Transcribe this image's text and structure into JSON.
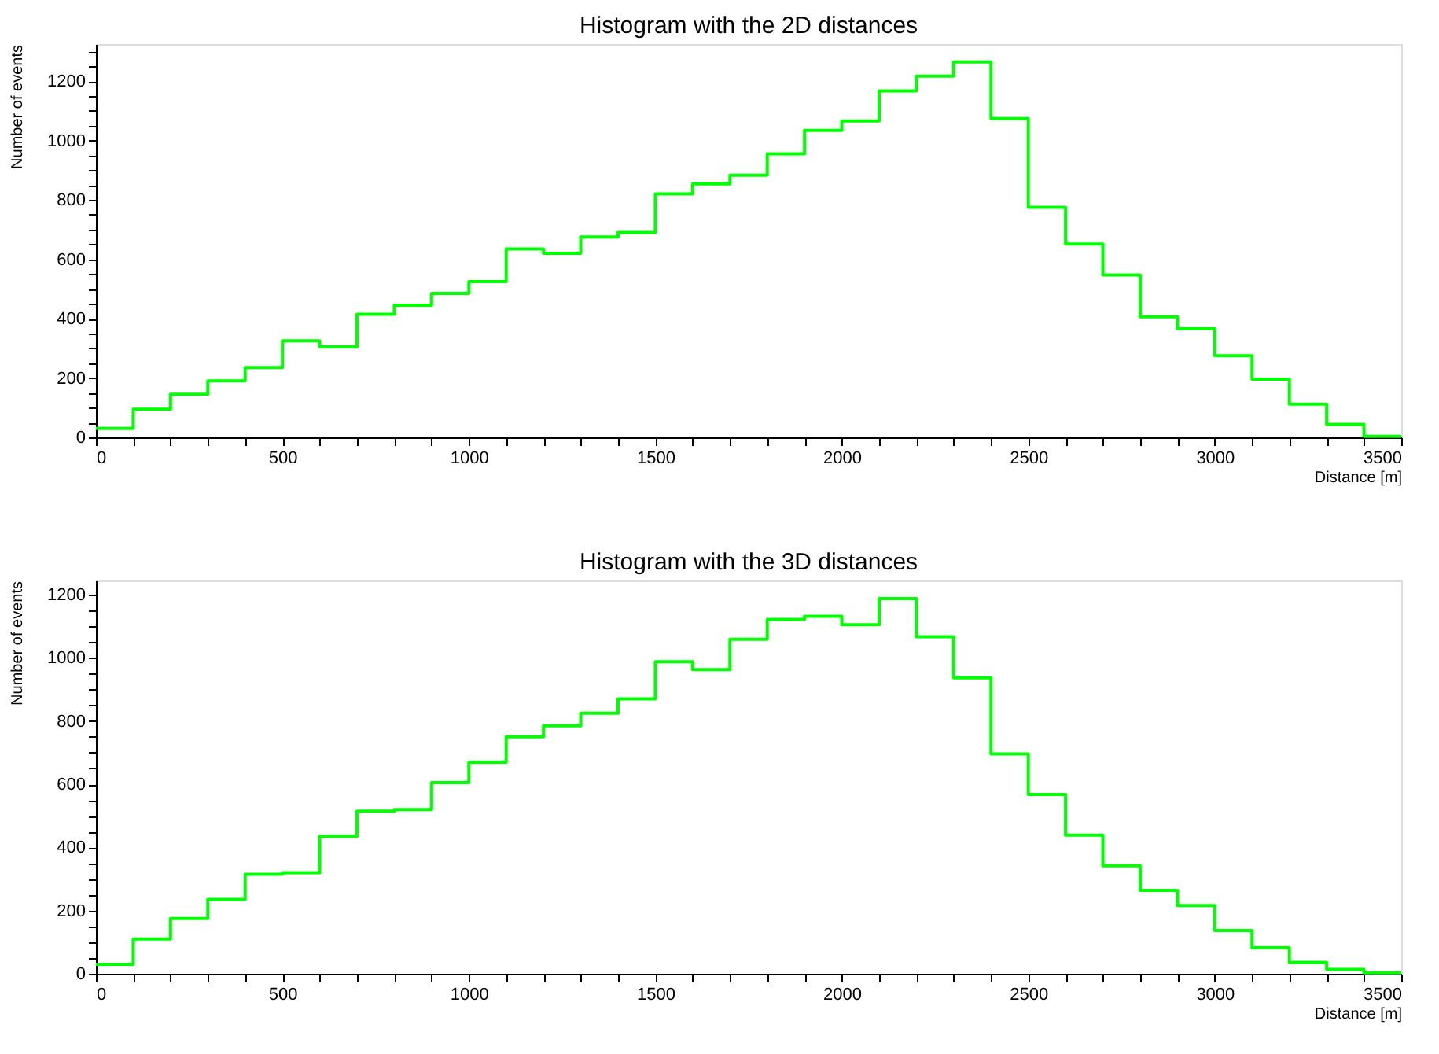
{
  "chart_data": [
    {
      "type": "histogram",
      "title": "Histogram with the 2D distances",
      "xlabel": "Distance [m]",
      "ylabel": "Number of events",
      "color": "#00ff00",
      "bins": [
        0,
        100,
        200,
        300,
        400,
        500,
        600,
        700,
        800,
        900,
        1000,
        1100,
        1200,
        1300,
        1400,
        1500,
        1600,
        1700,
        1800,
        1900,
        2000,
        2100,
        2200,
        2300,
        2400,
        2500,
        2600,
        2700,
        2800,
        2900,
        3000,
        3100,
        3200,
        3300,
        3400,
        3500
      ],
      "values": [
        30,
        95,
        145,
        190,
        235,
        325,
        305,
        415,
        445,
        485,
        525,
        635,
        620,
        675,
        690,
        820,
        854,
        883,
        955,
        1034,
        1066,
        1167,
        1217,
        1265,
        1074,
        775,
        651,
        547,
        406,
        366,
        275,
        196,
        112,
        44,
        3
      ],
      "xlim": [
        0,
        3500
      ],
      "ylim": [
        0,
        1325
      ],
      "xticks": [
        0,
        {
          "value": 100,
          "label": null
        },
        {
          "value": 200,
          "label": null
        },
        {
          "value": 300,
          "label": null
        },
        {
          "value": 400,
          "label": null
        },
        500,
        {
          "value": 600,
          "label": null
        },
        {
          "value": 700,
          "label": null
        },
        {
          "value": 800,
          "label": null
        },
        {
          "value": 900,
          "label": null
        },
        1000,
        {
          "value": 1100,
          "label": null
        },
        {
          "value": 1200,
          "label": null
        },
        {
          "value": 1300,
          "label": null
        },
        {
          "value": 1400,
          "label": null
        },
        1500,
        {
          "value": 1600,
          "label": null
        },
        {
          "value": 1700,
          "label": null
        },
        {
          "value": 1800,
          "label": null
        },
        {
          "value": 1900,
          "label": null
        },
        2000,
        {
          "value": 2100,
          "label": null
        },
        {
          "value": 2200,
          "label": null
        },
        {
          "value": 2300,
          "label": null
        },
        {
          "value": 2400,
          "label": null
        },
        2500,
        {
          "value": 2600,
          "label": null
        },
        {
          "value": 2700,
          "label": null
        },
        {
          "value": 2800,
          "label": null
        },
        {
          "value": 2900,
          "label": null
        },
        3000,
        {
          "value": 3100,
          "label": null
        },
        {
          "value": 3200,
          "label": null
        },
        {
          "value": 3300,
          "label": null
        },
        {
          "value": 3400,
          "label": null
        },
        3500
      ],
      "yticks": [
        0,
        {
          "value": 50,
          "label": null
        },
        {
          "value": 100,
          "label": null
        },
        {
          "value": 150,
          "label": null
        },
        200,
        {
          "value": 250,
          "label": null
        },
        {
          "value": 300,
          "label": null
        },
        {
          "value": 350,
          "label": null
        },
        400,
        {
          "value": 450,
          "label": null
        },
        {
          "value": 500,
          "label": null
        },
        {
          "value": 550,
          "label": null
        },
        600,
        {
          "value": 650,
          "label": null
        },
        {
          "value": 700,
          "label": null
        },
        {
          "value": 750,
          "label": null
        },
        800,
        {
          "value": 850,
          "label": null
        },
        {
          "value": 900,
          "label": null
        },
        {
          "value": 950,
          "label": null
        },
        1000,
        {
          "value": 1050,
          "label": null
        },
        {
          "value": 1100,
          "label": null
        },
        {
          "value": 1150,
          "label": null
        },
        1200,
        {
          "value": 1250,
          "label": null
        },
        {
          "value": 1300,
          "label": null
        }
      ]
    },
    {
      "type": "histogram",
      "title": "Histogram with the 3D distances",
      "xlabel": "Distance [m]",
      "ylabel": "Number of events",
      "color": "#00ff00",
      "bins": [
        0,
        100,
        200,
        300,
        400,
        500,
        600,
        700,
        800,
        900,
        1000,
        1100,
        1200,
        1300,
        1400,
        1500,
        1600,
        1700,
        1800,
        1900,
        2000,
        2100,
        2200,
        2300,
        2400,
        2500,
        2600,
        2700,
        2800,
        2900,
        3000,
        3100,
        3200,
        3300,
        3400,
        3500
      ],
      "values": [
        30,
        110,
        175,
        235,
        315,
        320,
        435,
        515,
        520,
        605,
        670,
        750,
        785,
        825,
        870,
        988,
        963,
        1059,
        1122,
        1132,
        1105,
        1188,
        1067,
        937,
        696,
        568,
        439,
        342,
        264,
        216,
        137,
        82,
        36,
        14,
        3
      ],
      "xlim": [
        0,
        3500
      ],
      "ylim": [
        0,
        1245
      ],
      "xticks": [
        0,
        {
          "value": 100,
          "label": null
        },
        {
          "value": 200,
          "label": null
        },
        {
          "value": 300,
          "label": null
        },
        {
          "value": 400,
          "label": null
        },
        500,
        {
          "value": 600,
          "label": null
        },
        {
          "value": 700,
          "label": null
        },
        {
          "value": 800,
          "label": null
        },
        {
          "value": 900,
          "label": null
        },
        1000,
        {
          "value": 1100,
          "label": null
        },
        {
          "value": 1200,
          "label": null
        },
        {
          "value": 1300,
          "label": null
        },
        {
          "value": 1400,
          "label": null
        },
        1500,
        {
          "value": 1600,
          "label": null
        },
        {
          "value": 1700,
          "label": null
        },
        {
          "value": 1800,
          "label": null
        },
        {
          "value": 1900,
          "label": null
        },
        2000,
        {
          "value": 2100,
          "label": null
        },
        {
          "value": 2200,
          "label": null
        },
        {
          "value": 2300,
          "label": null
        },
        {
          "value": 2400,
          "label": null
        },
        2500,
        {
          "value": 2600,
          "label": null
        },
        {
          "value": 2700,
          "label": null
        },
        {
          "value": 2800,
          "label": null
        },
        {
          "value": 2900,
          "label": null
        },
        3000,
        {
          "value": 3100,
          "label": null
        },
        {
          "value": 3200,
          "label": null
        },
        {
          "value": 3300,
          "label": null
        },
        {
          "value": 3400,
          "label": null
        },
        3500
      ],
      "yticks": [
        0,
        {
          "value": 50,
          "label": null
        },
        {
          "value": 100,
          "label": null
        },
        {
          "value": 150,
          "label": null
        },
        200,
        {
          "value": 250,
          "label": null
        },
        {
          "value": 300,
          "label": null
        },
        {
          "value": 350,
          "label": null
        },
        400,
        {
          "value": 450,
          "label": null
        },
        {
          "value": 500,
          "label": null
        },
        {
          "value": 550,
          "label": null
        },
        600,
        {
          "value": 650,
          "label": null
        },
        {
          "value": 700,
          "label": null
        },
        {
          "value": 750,
          "label": null
        },
        800,
        {
          "value": 850,
          "label": null
        },
        {
          "value": 900,
          "label": null
        },
        {
          "value": 950,
          "label": null
        },
        1000,
        {
          "value": 1050,
          "label": null
        },
        {
          "value": 1100,
          "label": null
        },
        {
          "value": 1150,
          "label": null
        },
        1200
      ]
    }
  ]
}
